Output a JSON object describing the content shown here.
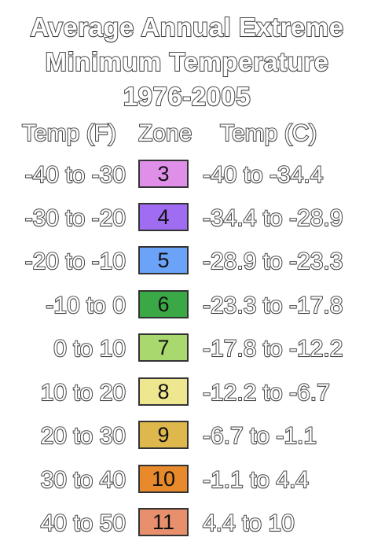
{
  "title": {
    "line1": "Average Annual Extreme",
    "line2": "Minimum Temperature",
    "line3": "1976-2005"
  },
  "headers": {
    "temp_f": "Temp (F)",
    "zone": "Zone",
    "temp_c": "Temp (C)"
  },
  "zones": [
    {
      "zone": "3",
      "temp_f": "-40 to -30",
      "temp_c": "-40 to -34.4",
      "color": "#e08fe8"
    },
    {
      "zone": "4",
      "temp_f": "-30 to -20",
      "temp_c": "-34.4 to -28.9",
      "color": "#a06cf2"
    },
    {
      "zone": "5",
      "temp_f": "-20 to -10",
      "temp_c": "-28.9 to -23.3",
      "color": "#6aa3f7"
    },
    {
      "zone": "6",
      "temp_f": "-10 to 0",
      "temp_c": "-23.3 to -17.8",
      "color": "#3aa845"
    },
    {
      "zone": "7",
      "temp_f": "0 to 10",
      "temp_c": "-17.8 to -12.2",
      "color": "#a9d86e"
    },
    {
      "zone": "8",
      "temp_f": "10 to 20",
      "temp_c": "-12.2 to -6.7",
      "color": "#efe78f"
    },
    {
      "zone": "9",
      "temp_f": "20 to 30",
      "temp_c": "-6.7 to -1.1",
      "color": "#dfb84d"
    },
    {
      "zone": "10",
      "temp_f": "30 to 40",
      "temp_c": "-1.1 to 4.4",
      "color": "#e88a2c"
    },
    {
      "zone": "11",
      "temp_f": "40 to 50",
      "temp_c": "4.4 to 10",
      "color": "#e8906e"
    }
  ]
}
